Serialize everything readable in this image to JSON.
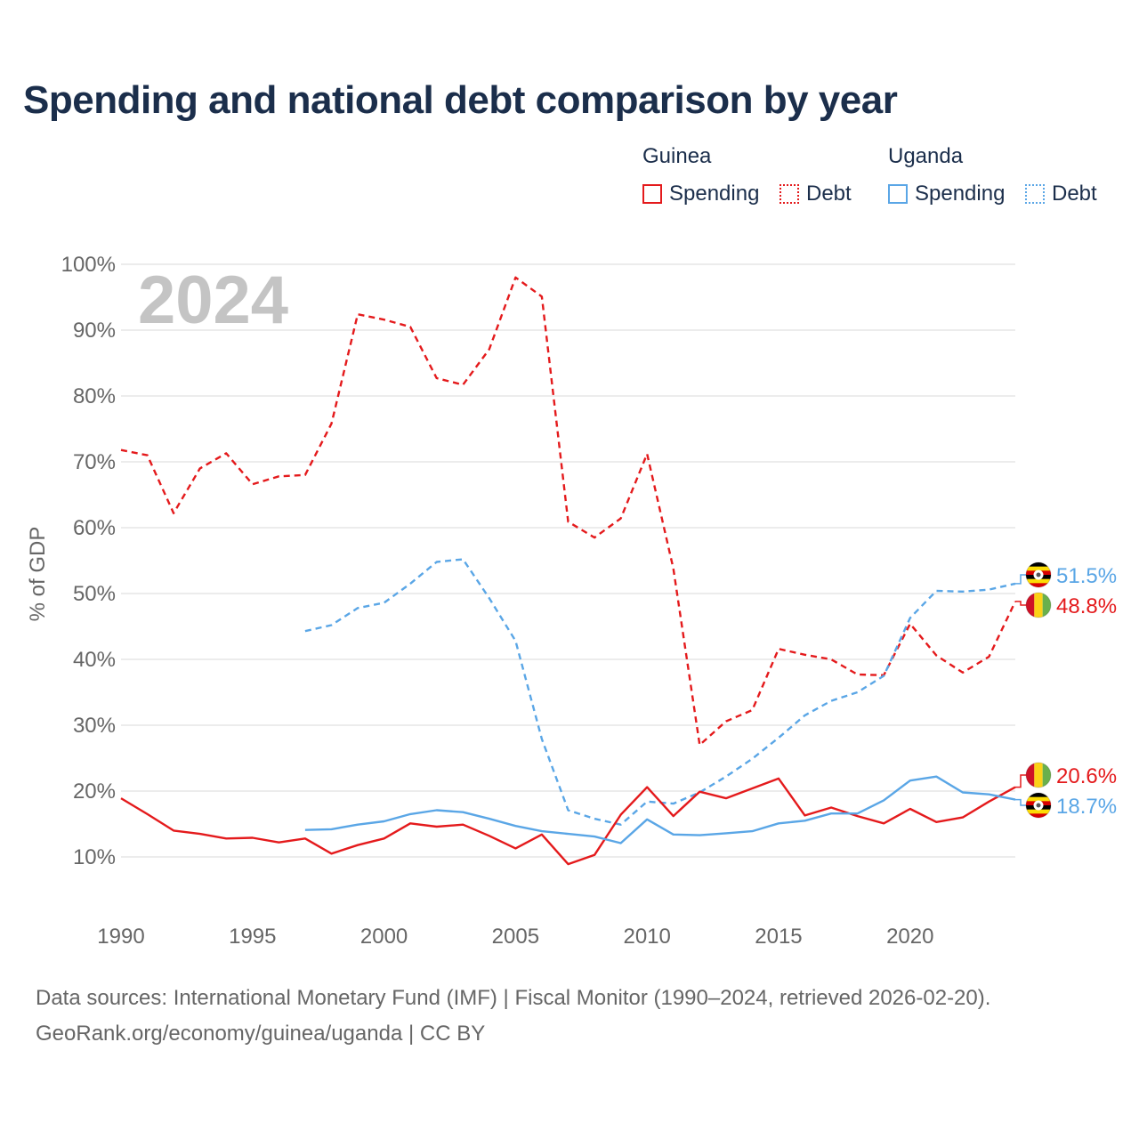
{
  "title": "Spending and national debt comparison by year",
  "legend": {
    "groups": [
      {
        "country": "Guinea",
        "items": [
          {
            "label": "Spending",
            "style": "solid"
          },
          {
            "label": "Debt",
            "style": "dotted"
          }
        ],
        "color": "#e41a1c"
      },
      {
        "country": "Uganda",
        "items": [
          {
            "label": "Spending",
            "style": "solid"
          },
          {
            "label": "Debt",
            "style": "dotted"
          }
        ],
        "color": "#5aa6e6"
      }
    ]
  },
  "year_label": "2024",
  "footer": {
    "line1": "Data sources: International Monetary Fund (IMF) | Fiscal Monitor (1990–2024, retrieved 2026-02-20).",
    "line2": "GeoRank.org/economy/guinea/uganda | CC BY"
  },
  "chart_data": {
    "type": "line",
    "title": "Spending and national debt comparison by year",
    "xlabel": "",
    "ylabel": "% of GDP",
    "xlim": [
      1990,
      2024
    ],
    "ylim": [
      0,
      100
    ],
    "x_ticks": [
      "1990",
      "1995",
      "2000",
      "2005",
      "2010",
      "2015",
      "2020"
    ],
    "x_tick_values": [
      1990,
      1995,
      2000,
      2005,
      2010,
      2015,
      2020
    ],
    "y_ticks": [
      "10%",
      "20%",
      "30%",
      "40%",
      "50%",
      "60%",
      "70%",
      "80%",
      "90%",
      "100%"
    ],
    "y_tick_values": [
      10,
      20,
      30,
      40,
      50,
      60,
      70,
      80,
      90,
      100
    ],
    "grid": true,
    "series": [
      {
        "name": "Guinea Debt",
        "country": "Guinea",
        "metric": "Debt",
        "color": "#e41a1c",
        "dash": "dashed",
        "x": [
          1990,
          1991,
          1992,
          1993,
          1994,
          1995,
          1996,
          1997,
          1998,
          1999,
          2000,
          2001,
          2002,
          2003,
          2004,
          2005,
          2006,
          2007,
          2008,
          2009,
          2010,
          2011,
          2012,
          2013,
          2014,
          2015,
          2016,
          2017,
          2018,
          2019,
          2020,
          2021,
          2022,
          2023,
          2024
        ],
        "values": [
          71.8,
          71.0,
          62.2,
          69.0,
          71.3,
          66.6,
          67.8,
          68.0,
          75.8,
          92.4,
          91.6,
          90.5,
          82.7,
          81.7,
          87.1,
          98.0,
          95.1,
          60.9,
          58.5,
          61.4,
          71.2,
          53.8,
          27.0,
          30.6,
          32.3,
          41.6,
          40.7,
          40.0,
          37.7,
          37.6,
          45.4,
          40.6,
          38.0,
          40.4,
          48.8
        ],
        "end_label": "48.8%"
      },
      {
        "name": "Uganda Debt",
        "country": "Uganda",
        "metric": "Debt",
        "color": "#5aa6e6",
        "dash": "dashed",
        "x": [
          1997,
          1998,
          1999,
          2000,
          2001,
          2002,
          2003,
          2004,
          2005,
          2006,
          2007,
          2008,
          2009,
          2010,
          2011,
          2012,
          2013,
          2014,
          2015,
          2016,
          2017,
          2018,
          2019,
          2020,
          2021,
          2022,
          2023,
          2024
        ],
        "values": [
          44.3,
          45.2,
          47.8,
          48.6,
          51.5,
          54.8,
          55.2,
          49.3,
          42.8,
          27.9,
          17.1,
          15.8,
          14.9,
          18.4,
          18.1,
          19.8,
          22.2,
          24.9,
          28.1,
          31.5,
          33.7,
          35.0,
          37.5,
          46.3,
          50.4,
          50.3,
          50.6,
          51.5
        ],
        "end_label": "51.5%"
      },
      {
        "name": "Guinea Spending",
        "country": "Guinea",
        "metric": "Spending",
        "color": "#e41a1c",
        "dash": "solid",
        "x": [
          1990,
          1991,
          1992,
          1993,
          1994,
          1995,
          1996,
          1997,
          1998,
          1999,
          2000,
          2001,
          2002,
          2003,
          2004,
          2005,
          2006,
          2007,
          2008,
          2009,
          2010,
          2011,
          2012,
          2013,
          2014,
          2015,
          2016,
          2017,
          2018,
          2019,
          2020,
          2021,
          2022,
          2023,
          2024
        ],
        "values": [
          18.9,
          16.5,
          14.0,
          13.5,
          12.8,
          12.9,
          12.2,
          12.8,
          10.5,
          11.8,
          12.8,
          15.1,
          14.6,
          14.9,
          13.2,
          11.3,
          13.4,
          8.9,
          10.3,
          16.4,
          20.6,
          16.2,
          19.9,
          18.9,
          20.4,
          21.9,
          16.3,
          17.5,
          16.2,
          15.1,
          17.3,
          15.3,
          16.0,
          18.4,
          20.6
        ],
        "end_label": "20.6%"
      },
      {
        "name": "Uganda Spending",
        "country": "Uganda",
        "metric": "Spending",
        "color": "#5aa6e6",
        "dash": "solid",
        "x": [
          1997,
          1998,
          1999,
          2000,
          2001,
          2002,
          2003,
          2004,
          2005,
          2006,
          2007,
          2008,
          2009,
          2010,
          2011,
          2012,
          2013,
          2014,
          2015,
          2016,
          2017,
          2018,
          2019,
          2020,
          2021,
          2022,
          2023,
          2024
        ],
        "values": [
          14.1,
          14.2,
          14.9,
          15.4,
          16.5,
          17.1,
          16.8,
          15.8,
          14.7,
          13.9,
          13.5,
          13.1,
          12.1,
          15.7,
          13.4,
          13.3,
          13.6,
          13.9,
          15.1,
          15.5,
          16.6,
          16.6,
          18.6,
          21.6,
          22.2,
          19.8,
          19.5,
          18.7
        ],
        "end_label": "18.7%"
      }
    ],
    "annotations": [
      "2024"
    ]
  }
}
